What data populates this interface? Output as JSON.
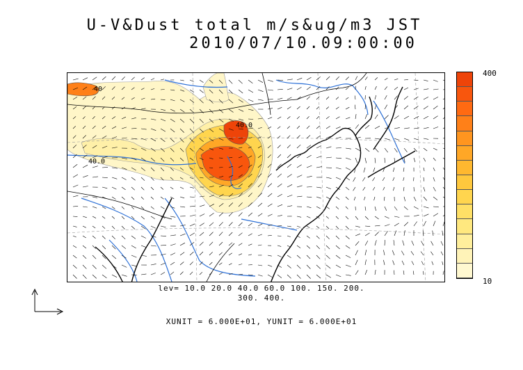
{
  "title": {
    "line1": "U-V&Dust total m/s&ug/m3 JST",
    "line2": "2010/07/10.09:00:00"
  },
  "colorbar": {
    "max_label": "400",
    "min_label": "10",
    "colors": [
      "#fff8d0",
      "#fff3b8",
      "#ffef9c",
      "#ffe87f",
      "#ffe066",
      "#ffd54e",
      "#ffc83d",
      "#ffb82f",
      "#ffa726",
      "#ff951f",
      "#ff8018",
      "#ff6a12",
      "#f8560d",
      "#ee4409"
    ]
  },
  "contour_levels": {
    "line1": "lev= 10.0 20.0 40.0 60.0 100. 150. 200.",
    "line2": "300. 400."
  },
  "units": {
    "text": "XUNIT = 6.000E+01, YUNIT = 6.000E+01"
  },
  "map_labels": {
    "contour_a": "40",
    "contour_b": "40.0",
    "contour_c": "40.0"
  },
  "colors": {
    "river": "#2b6fd6",
    "coast": "#000000",
    "dust_light": "#fff6c8",
    "dust_mid": "#ffd54e",
    "dust_high": "#ff6a12",
    "dust_peak": "#ee4409"
  }
}
